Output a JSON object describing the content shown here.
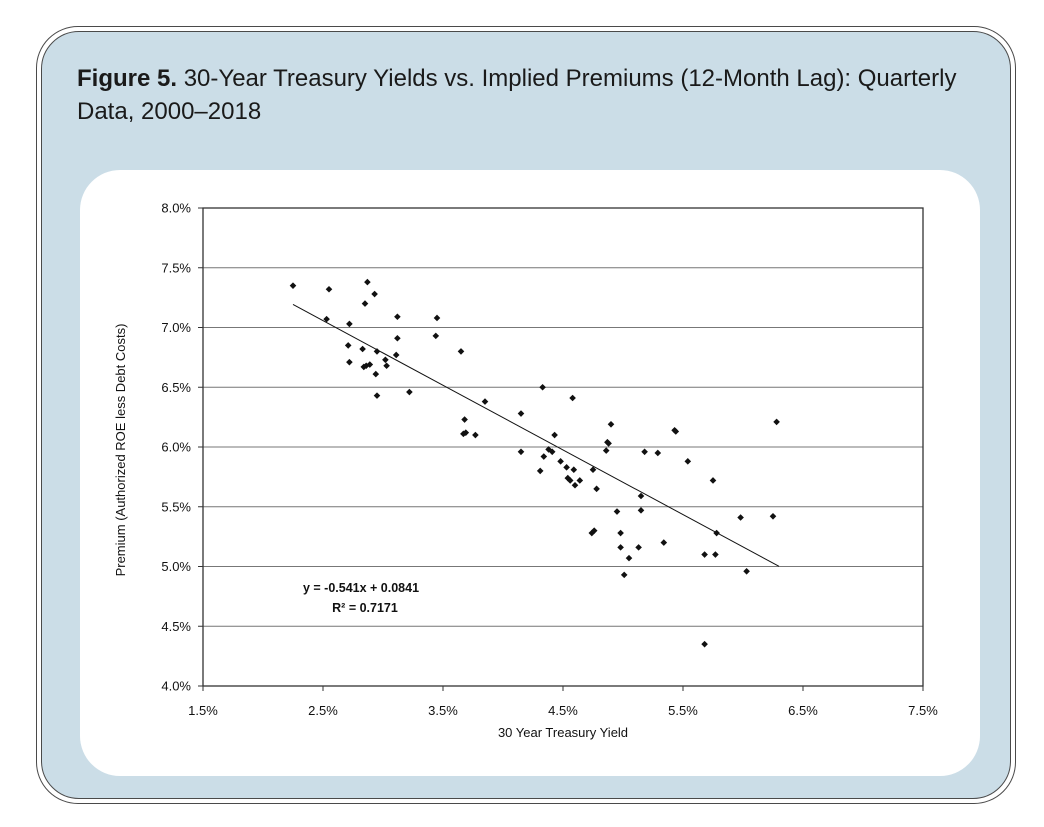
{
  "figure": {
    "label": "Figure 5.",
    "title_rest": "30-Year Treasury Yields vs. Implied Premiums (12-Month Lag): Quarterly Data, 2000–2018"
  },
  "chart_data": {
    "type": "scatter",
    "xlabel": "30 Year Treasury Yield",
    "ylabel": "Premium (Authorized ROE less Debt Costs)",
    "xlim": [
      0.015,
      0.075
    ],
    "ylim": [
      0.04,
      0.08
    ],
    "x_ticks": [
      0.015,
      0.025,
      0.035,
      0.045,
      0.055,
      0.065,
      0.075
    ],
    "x_tick_labels": [
      "1.5%",
      "2.5%",
      "3.5%",
      "4.5%",
      "5.5%",
      "6.5%",
      "7.5%"
    ],
    "y_ticks": [
      0.04,
      0.045,
      0.05,
      0.055,
      0.06,
      0.065,
      0.07,
      0.075,
      0.08
    ],
    "y_tick_labels": [
      "4.0%",
      "4.5%",
      "5.0%",
      "5.5%",
      "6.0%",
      "6.5%",
      "7.0%",
      "7.5%",
      "8.0%"
    ],
    "grid": "horizontal",
    "trendline": {
      "slope": -0.541,
      "intercept": 0.0841,
      "x_range": [
        0.0225,
        0.063
      ],
      "equation_label": "y = -0.541x + 0.0841",
      "r2_label": "R² = 0.7171"
    },
    "points": [
      [
        0.0225,
        0.0735
      ],
      [
        0.0255,
        0.0732
      ],
      [
        0.0253,
        0.0707
      ],
      [
        0.0272,
        0.0703
      ],
      [
        0.0271,
        0.0685
      ],
      [
        0.0272,
        0.0671
      ],
      [
        0.0283,
        0.0682
      ],
      [
        0.0287,
        0.0738
      ],
      [
        0.0285,
        0.072
      ],
      [
        0.0293,
        0.0728
      ],
      [
        0.0284,
        0.0667
      ],
      [
        0.0286,
        0.0668
      ],
      [
        0.0289,
        0.0669
      ],
      [
        0.0295,
        0.068
      ],
      [
        0.0294,
        0.0661
      ],
      [
        0.0295,
        0.0643
      ],
      [
        0.0302,
        0.0673
      ],
      [
        0.0303,
        0.0668
      ],
      [
        0.0312,
        0.0709
      ],
      [
        0.0312,
        0.0691
      ],
      [
        0.0311,
        0.0677
      ],
      [
        0.0322,
        0.0646
      ],
      [
        0.0345,
        0.0708
      ],
      [
        0.0344,
        0.0693
      ],
      [
        0.0365,
        0.068
      ],
      [
        0.0368,
        0.0623
      ],
      [
        0.0367,
        0.0611
      ],
      [
        0.0369,
        0.0612
      ],
      [
        0.0377,
        0.061
      ],
      [
        0.0385,
        0.0638
      ],
      [
        0.0415,
        0.0628
      ],
      [
        0.0415,
        0.0596
      ],
      [
        0.0431,
        0.058
      ],
      [
        0.0433,
        0.065
      ],
      [
        0.0434,
        0.0592
      ],
      [
        0.0438,
        0.0598
      ],
      [
        0.0441,
        0.0596
      ],
      [
        0.0443,
        0.061
      ],
      [
        0.0448,
        0.0588
      ],
      [
        0.0453,
        0.0583
      ],
      [
        0.0454,
        0.0574
      ],
      [
        0.0456,
        0.0572
      ],
      [
        0.0458,
        0.0641
      ],
      [
        0.0459,
        0.0581
      ],
      [
        0.046,
        0.0568
      ],
      [
        0.0464,
        0.0572
      ],
      [
        0.0475,
        0.0581
      ],
      [
        0.0478,
        0.0565
      ],
      [
        0.0474,
        0.0528
      ],
      [
        0.0476,
        0.053
      ],
      [
        0.0486,
        0.0597
      ],
      [
        0.0487,
        0.0604
      ],
      [
        0.0488,
        0.0603
      ],
      [
        0.049,
        0.0619
      ],
      [
        0.0495,
        0.0546
      ],
      [
        0.0498,
        0.0528
      ],
      [
        0.0498,
        0.0516
      ],
      [
        0.0501,
        0.0493
      ],
      [
        0.0505,
        0.0507
      ],
      [
        0.0513,
        0.0516
      ],
      [
        0.0515,
        0.0559
      ],
      [
        0.0515,
        0.0547
      ],
      [
        0.0518,
        0.0596
      ],
      [
        0.0529,
        0.0595
      ],
      [
        0.0534,
        0.052
      ],
      [
        0.0543,
        0.0614
      ],
      [
        0.0544,
        0.0613
      ],
      [
        0.0554,
        0.0588
      ],
      [
        0.0568,
        0.051
      ],
      [
        0.0568,
        0.0435
      ],
      [
        0.0575,
        0.0572
      ],
      [
        0.0577,
        0.051
      ],
      [
        0.0578,
        0.0528
      ],
      [
        0.0598,
        0.0541
      ],
      [
        0.0603,
        0.0496
      ],
      [
        0.0625,
        0.0542
      ],
      [
        0.0628,
        0.0621
      ]
    ]
  }
}
